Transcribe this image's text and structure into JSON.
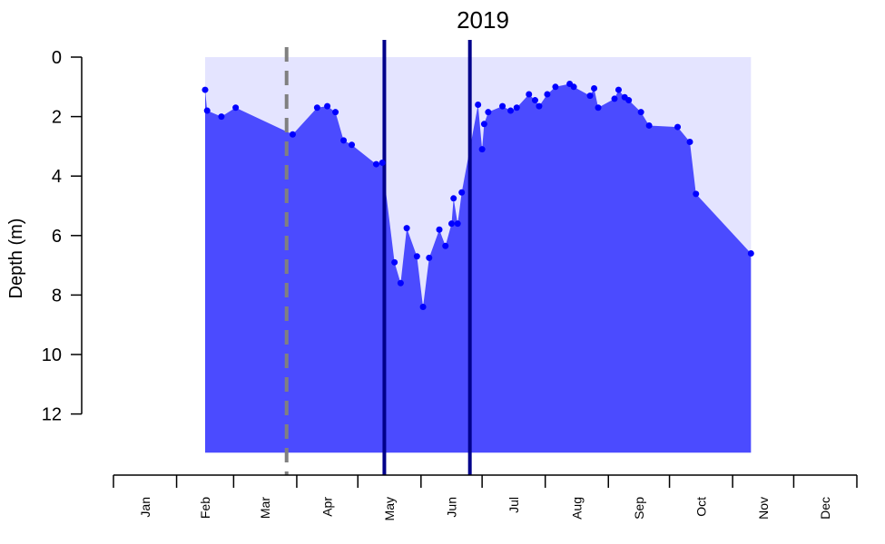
{
  "chart_data": {
    "type": "area",
    "title": "2019",
    "ylabel": "Depth (m)",
    "y_axis_reversed": true,
    "ylim": [
      0,
      13.3
    ],
    "yticks": [
      0,
      2,
      4,
      6,
      8,
      10,
      12
    ],
    "xlim": [
      "2019-01-01",
      "2019-12-31"
    ],
    "months": [
      "Jan",
      "Feb",
      "Mar",
      "Apr",
      "May",
      "Jun",
      "Jul",
      "Aug",
      "Sep",
      "Oct",
      "Nov",
      "Dec"
    ],
    "sampling_window": {
      "start": "2019-02-15",
      "end": "2019-11-10",
      "max_depth": 13.3
    },
    "vertical_lines": [
      {
        "date": "2019-03-27",
        "style": "dashed",
        "color": "#808080"
      },
      {
        "date": "2019-05-14",
        "style": "solid",
        "color": "#00008b"
      },
      {
        "date": "2019-06-25",
        "style": "solid",
        "color": "#00008b"
      }
    ],
    "colors": {
      "background_fill": "#e4e4ff",
      "area_fill": "#4b4bff",
      "points": "#0000ff"
    },
    "series": [
      {
        "x": [
          "2019-02-15",
          "2019-02-16",
          "2019-02-23",
          "2019-03-02",
          "2019-03-30",
          "2019-04-11",
          "2019-04-16",
          "2019-04-20",
          "2019-04-24",
          "2019-04-28",
          "2019-05-10",
          "2019-05-13",
          "2019-05-19",
          "2019-05-22",
          "2019-05-25",
          "2019-05-30",
          "2019-06-02",
          "2019-06-05",
          "2019-06-10",
          "2019-06-13",
          "2019-06-16",
          "2019-06-17",
          "2019-06-19",
          "2019-06-21",
          "2019-06-29",
          "2019-07-01",
          "2019-07-02",
          "2019-07-04",
          "2019-07-11",
          "2019-07-15",
          "2019-07-18",
          "2019-07-24",
          "2019-07-27",
          "2019-07-29",
          "2019-08-02",
          "2019-08-06",
          "2019-08-13",
          "2019-08-15",
          "2019-08-23",
          "2019-08-25",
          "2019-08-27",
          "2019-09-04",
          "2019-09-06",
          "2019-09-09",
          "2019-09-11",
          "2019-09-17",
          "2019-09-21",
          "2019-10-05",
          "2019-10-11",
          "2019-10-14",
          "2019-11-10"
        ],
        "y": [
          1.1,
          1.8,
          2.0,
          1.7,
          2.6,
          1.7,
          1.65,
          1.85,
          2.8,
          2.95,
          3.6,
          3.55,
          6.9,
          7.6,
          5.75,
          6.7,
          8.4,
          6.75,
          5.8,
          6.35,
          5.6,
          4.75,
          5.6,
          4.55,
          1.6,
          3.1,
          2.25,
          1.85,
          1.65,
          1.8,
          1.7,
          1.25,
          1.45,
          1.65,
          1.25,
          1.0,
          0.9,
          1.0,
          1.3,
          1.05,
          1.7,
          1.4,
          1.1,
          1.35,
          1.45,
          1.85,
          2.3,
          2.35,
          2.85,
          4.6,
          6.6
        ]
      }
    ]
  }
}
